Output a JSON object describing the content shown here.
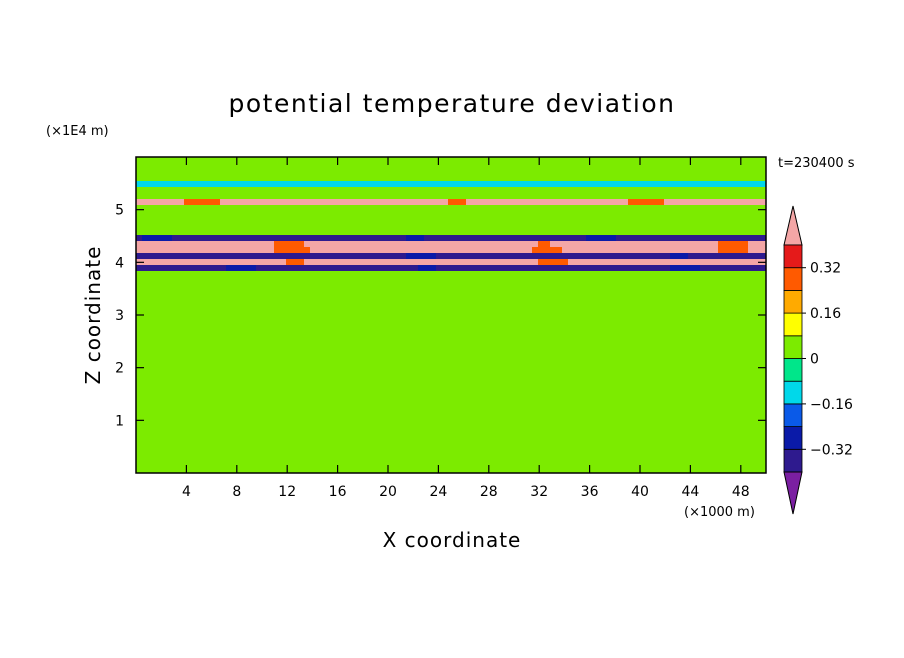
{
  "chart_data": {
    "type": "heatmap",
    "title": "potential temperature deviation",
    "xlabel": "X coordinate",
    "ylabel": "Z coordinate",
    "x_unit": "(×1000 m)",
    "y_unit": "(×1E4 m)",
    "time_label": "t=230400 s",
    "xlim": [
      0,
      50
    ],
    "ylim": [
      0,
      6
    ],
    "x_ticks": [
      4,
      8,
      12,
      16,
      20,
      24,
      28,
      32,
      36,
      40,
      44,
      48
    ],
    "y_ticks": [
      1,
      2,
      3,
      4,
      5
    ],
    "colorbar": {
      "levels": [
        -0.4,
        -0.32,
        -0.24,
        -0.16,
        -0.08,
        0,
        0.08,
        0.16,
        0.24,
        0.32,
        0.4
      ],
      "labels": [
        "0.32",
        "0.16",
        "0",
        "−0.16",
        "−0.32"
      ],
      "label_values": [
        0.32,
        0.16,
        0,
        -0.16,
        -0.32
      ],
      "colors": [
        "#7B1FA2",
        "#2E1A8E",
        "#0A1AA8",
        "#0A5AE8",
        "#00D8EA",
        "#00E68A",
        "#7CEB00",
        "#FFFF00",
        "#FFAA00",
        "#FF5A00",
        "#E51A1A",
        "#F4A6A6"
      ],
      "extend": "both"
    },
    "field_description_layers": [
      {
        "z_range": [
          0,
          3.8
        ],
        "pattern": "noise",
        "values": [
          0.02,
          0.06
        ]
      },
      {
        "z_range": [
          3.8,
          3.95
        ],
        "value": -0.36
      },
      {
        "z_range": [
          3.95,
          4.05
        ],
        "value": 0.42
      },
      {
        "z_range": [
          4.05,
          4.2
        ],
        "value": -0.36
      },
      {
        "z_range": [
          4.2,
          4.35
        ],
        "value": 0.42
      },
      {
        "z_range": [
          4.35,
          4.55
        ],
        "value": -0.36
      },
      {
        "z_range": [
          4.55,
          4.7
        ],
        "value": 0.02
      },
      {
        "z_range": [
          4.7,
          5.05
        ],
        "value": 0.06
      },
      {
        "z_range": [
          5.05,
          5.25
        ],
        "value": 0.42
      },
      {
        "z_range": [
          5.25,
          5.45
        ],
        "value": 0.06
      },
      {
        "z_range": [
          5.45,
          5.6
        ],
        "value": -0.12
      },
      {
        "z_range": [
          5.6,
          6.0
        ],
        "value": 0.06
      }
    ]
  }
}
